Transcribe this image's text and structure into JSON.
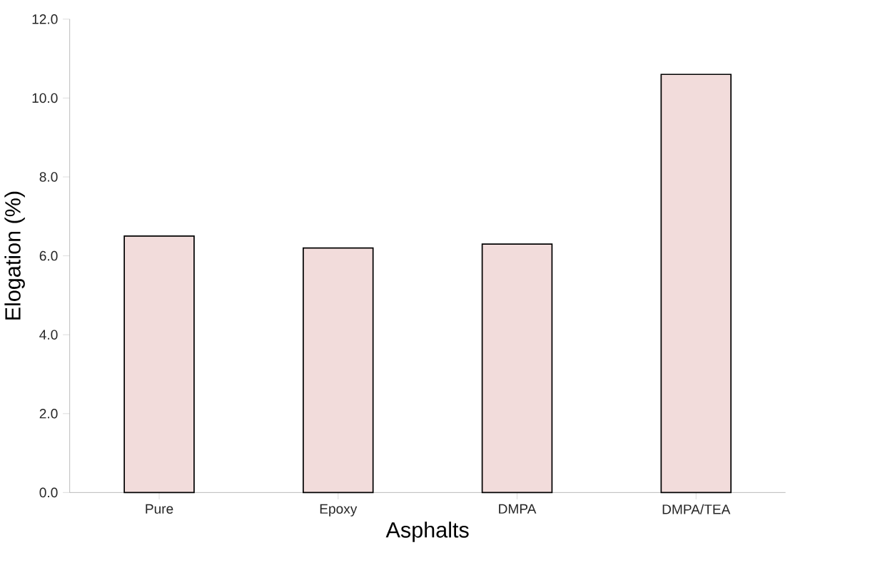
{
  "chart_data": {
    "type": "bar",
    "xlabel": "Asphalts",
    "ylabel": "Elogation (%)",
    "categories": [
      "Pure",
      "Epoxy",
      "DMPA",
      "DMPA/TEA"
    ],
    "values": [
      6.5,
      6.2,
      6.3,
      10.6
    ],
    "color": "#f2dcdb",
    "ylim": [
      0,
      12
    ],
    "yticks": [
      {
        "value": 0,
        "label": "0.0"
      },
      {
        "value": 2,
        "label": "2.0"
      },
      {
        "value": 4,
        "label": "4.0"
      },
      {
        "value": 6,
        "label": "6.0"
      },
      {
        "value": 8,
        "label": "8.0"
      },
      {
        "value": 10,
        "label": "10.0"
      },
      {
        "value": 12,
        "label": "12.0"
      }
    ]
  }
}
